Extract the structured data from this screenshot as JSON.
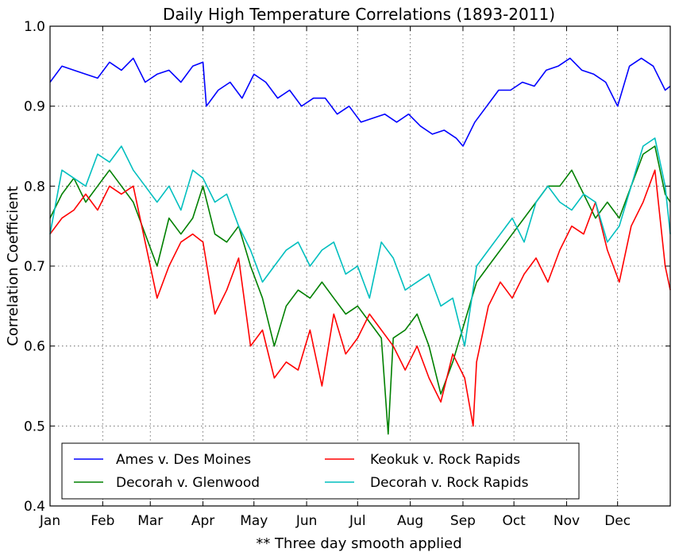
{
  "chart_data": {
    "type": "line",
    "title": "Daily High Temperature Correlations (1893-2011)",
    "xlabel": "** Three day smooth applied",
    "ylabel": "Correlation Coefficient",
    "x_unit": "day of year",
    "xlim": [
      1,
      366
    ],
    "ylim": [
      0.4,
      1.0
    ],
    "yticks": [
      "0.4",
      "0.5",
      "0.6",
      "0.7",
      "0.8",
      "0.9",
      "1.0"
    ],
    "xticks": [
      {
        "label": "Jan",
        "day": 1
      },
      {
        "label": "Feb",
        "day": 32
      },
      {
        "label": "Mar",
        "day": 60
      },
      {
        "label": "Apr",
        "day": 91
      },
      {
        "label": "May",
        "day": 121
      },
      {
        "label": "Jun",
        "day": 152
      },
      {
        "label": "Jul",
        "day": 182
      },
      {
        "label": "Aug",
        "day": 213
      },
      {
        "label": "Sep",
        "day": 244
      },
      {
        "label": "Oct",
        "day": 274
      },
      {
        "label": "Nov",
        "day": 305
      },
      {
        "label": "Dec",
        "day": 335
      }
    ],
    "grid": true,
    "legend_position": "lower-center",
    "series": [
      {
        "name": "Ames v. Des Moines",
        "color": "#0000ff",
        "x": [
          1,
          8,
          15,
          22,
          29,
          36,
          43,
          50,
          57,
          64,
          71,
          78,
          85,
          91,
          93,
          100,
          107,
          114,
          121,
          128,
          135,
          142,
          149,
          156,
          163,
          170,
          177,
          184,
          191,
          198,
          205,
          212,
          219,
          226,
          233,
          240,
          244,
          251,
          258,
          265,
          272,
          279,
          286,
          293,
          300,
          307,
          314,
          321,
          328,
          335,
          342,
          349,
          356,
          363,
          366
        ],
        "y": [
          0.93,
          0.95,
          0.945,
          0.94,
          0.935,
          0.955,
          0.945,
          0.96,
          0.93,
          0.94,
          0.945,
          0.93,
          0.95,
          0.955,
          0.9,
          0.92,
          0.93,
          0.91,
          0.94,
          0.93,
          0.91,
          0.92,
          0.9,
          0.91,
          0.91,
          0.89,
          0.9,
          0.88,
          0.885,
          0.89,
          0.88,
          0.89,
          0.875,
          0.865,
          0.87,
          0.86,
          0.85,
          0.88,
          0.9,
          0.92,
          0.92,
          0.93,
          0.925,
          0.945,
          0.95,
          0.96,
          0.945,
          0.94,
          0.93,
          0.9,
          0.95,
          0.96,
          0.95,
          0.92,
          0.925
        ]
      },
      {
        "name": "Decorah v. Glenwood",
        "color": "#008000",
        "x": [
          1,
          8,
          15,
          22,
          29,
          36,
          43,
          50,
          57,
          64,
          71,
          78,
          85,
          91,
          98,
          105,
          112,
          119,
          126,
          133,
          140,
          147,
          154,
          161,
          168,
          175,
          182,
          189,
          196,
          200,
          203,
          210,
          217,
          224,
          231,
          238,
          245,
          252,
          259,
          266,
          273,
          280,
          287,
          294,
          301,
          308,
          315,
          322,
          329,
          336,
          343,
          350,
          357,
          363,
          366
        ],
        "y": [
          0.76,
          0.79,
          0.81,
          0.78,
          0.8,
          0.82,
          0.8,
          0.78,
          0.74,
          0.7,
          0.76,
          0.74,
          0.76,
          0.8,
          0.74,
          0.73,
          0.75,
          0.7,
          0.66,
          0.6,
          0.65,
          0.67,
          0.66,
          0.68,
          0.66,
          0.64,
          0.65,
          0.63,
          0.61,
          0.49,
          0.61,
          0.62,
          0.64,
          0.6,
          0.54,
          0.58,
          0.63,
          0.68,
          0.7,
          0.72,
          0.74,
          0.76,
          0.78,
          0.8,
          0.8,
          0.82,
          0.79,
          0.76,
          0.78,
          0.76,
          0.8,
          0.84,
          0.85,
          0.79,
          0.78
        ]
      },
      {
        "name": "Keokuk v. Rock Rapids",
        "color": "#ff0000",
        "x": [
          1,
          8,
          15,
          22,
          29,
          36,
          43,
          50,
          57,
          64,
          71,
          78,
          85,
          91,
          98,
          105,
          112,
          119,
          126,
          133,
          140,
          147,
          154,
          161,
          168,
          175,
          182,
          189,
          196,
          203,
          210,
          217,
          224,
          231,
          238,
          245,
          250,
          252,
          259,
          266,
          273,
          280,
          287,
          294,
          301,
          308,
          315,
          322,
          329,
          336,
          343,
          350,
          357,
          363,
          366
        ],
        "y": [
          0.74,
          0.76,
          0.77,
          0.79,
          0.77,
          0.8,
          0.79,
          0.8,
          0.73,
          0.66,
          0.7,
          0.73,
          0.74,
          0.73,
          0.64,
          0.67,
          0.71,
          0.6,
          0.62,
          0.56,
          0.58,
          0.57,
          0.62,
          0.55,
          0.64,
          0.59,
          0.61,
          0.64,
          0.62,
          0.6,
          0.57,
          0.6,
          0.56,
          0.53,
          0.59,
          0.56,
          0.5,
          0.58,
          0.65,
          0.68,
          0.66,
          0.69,
          0.71,
          0.68,
          0.72,
          0.75,
          0.74,
          0.78,
          0.72,
          0.68,
          0.75,
          0.78,
          0.82,
          0.7,
          0.67
        ]
      },
      {
        "name": "Decorah v. Rock Rapids",
        "color": "#00bfbf",
        "x": [
          1,
          8,
          15,
          22,
          29,
          36,
          43,
          50,
          57,
          64,
          71,
          78,
          85,
          91,
          98,
          105,
          112,
          119,
          126,
          133,
          140,
          147,
          154,
          161,
          168,
          175,
          182,
          189,
          196,
          203,
          210,
          217,
          224,
          231,
          238,
          245,
          252,
          259,
          266,
          273,
          280,
          287,
          294,
          301,
          308,
          315,
          322,
          329,
          336,
          343,
          350,
          357,
          363,
          366
        ],
        "y": [
          0.74,
          0.82,
          0.81,
          0.8,
          0.84,
          0.83,
          0.85,
          0.82,
          0.8,
          0.78,
          0.8,
          0.77,
          0.82,
          0.81,
          0.78,
          0.79,
          0.75,
          0.72,
          0.68,
          0.7,
          0.72,
          0.73,
          0.7,
          0.72,
          0.73,
          0.69,
          0.7,
          0.66,
          0.73,
          0.71,
          0.67,
          0.68,
          0.69,
          0.65,
          0.66,
          0.6,
          0.7,
          0.72,
          0.74,
          0.76,
          0.73,
          0.78,
          0.8,
          0.78,
          0.77,
          0.79,
          0.78,
          0.73,
          0.75,
          0.8,
          0.85,
          0.86,
          0.8,
          0.74
        ]
      }
    ]
  }
}
